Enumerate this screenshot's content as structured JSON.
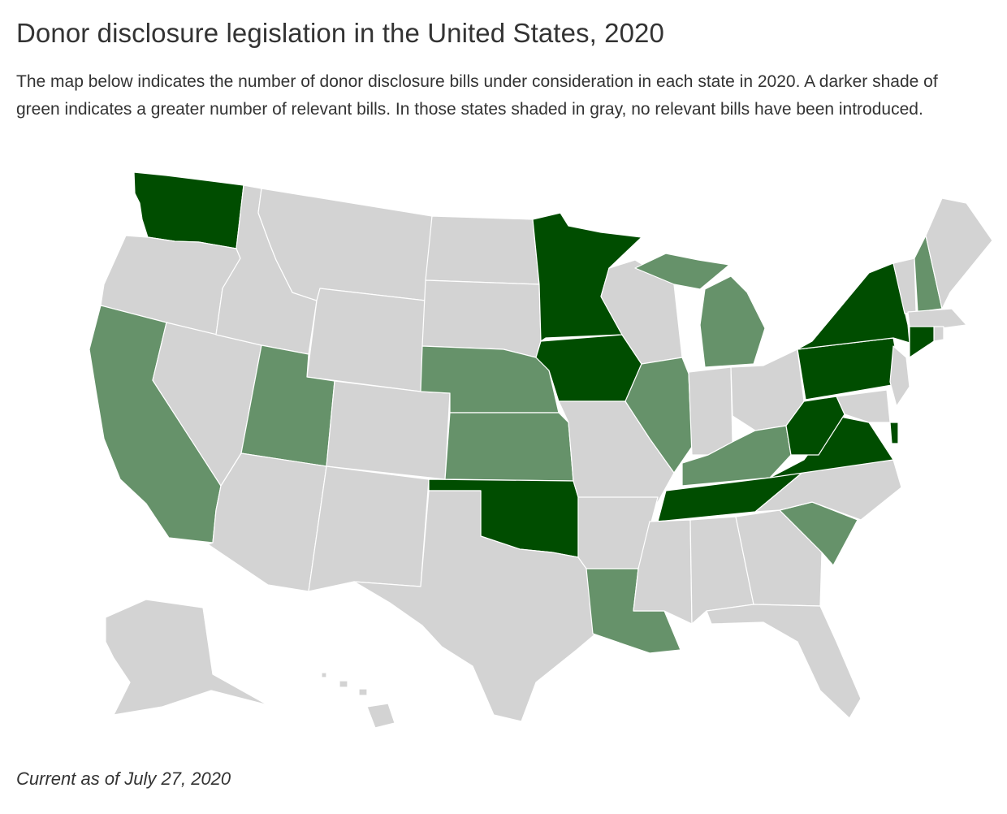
{
  "title": "Donor disclosure legislation in the United States, 2020",
  "description": "The map below indicates the number of donor disclosure bills under consideration in each state in 2020. A darker shade of green indicates a greater number of relevant bills. In those states shaded in gray, no relevant bills have been introduced.",
  "footer": "Current as of July 27, 2020",
  "colors": {
    "none": "#d3d3d3",
    "light": "#66926a",
    "dark": "#004d00",
    "border": "#ffffff"
  },
  "map": {
    "type": "choropleth",
    "region": "United States",
    "shade_levels": [
      "none",
      "light",
      "dark"
    ],
    "states": {
      "washington": "dark",
      "oregon": "none",
      "california": "light",
      "nevada": "none",
      "idaho": "none",
      "montana": "none",
      "wyoming": "none",
      "utah": "light",
      "arizona": "none",
      "colorado": "none",
      "new-mexico": "none",
      "north-dakota": "none",
      "south-dakota": "none",
      "nebraska": "light",
      "kansas": "light",
      "oklahoma": "dark",
      "texas": "none",
      "minnesota": "dark",
      "iowa": "dark",
      "missouri": "none",
      "arkansas": "none",
      "louisiana": "light",
      "wisconsin": "none",
      "illinois": "light",
      "michigan": "light",
      "indiana": "none",
      "ohio": "none",
      "kentucky": "light",
      "tennessee": "dark",
      "mississippi": "none",
      "alabama": "none",
      "georgia": "none",
      "florida": "none",
      "south-carolina": "light",
      "north-carolina": "none",
      "virginia": "dark",
      "west-virginia": "dark",
      "pennsylvania": "dark",
      "new-york": "dark",
      "vermont": "none",
      "new-hampshire": "light",
      "maine": "none",
      "massachusetts": "none",
      "connecticut": "dark",
      "rhode-island": "none",
      "new-jersey": "none",
      "delaware": "dark",
      "maryland": "none",
      "alaska": "none",
      "hawaii": "none"
    }
  }
}
